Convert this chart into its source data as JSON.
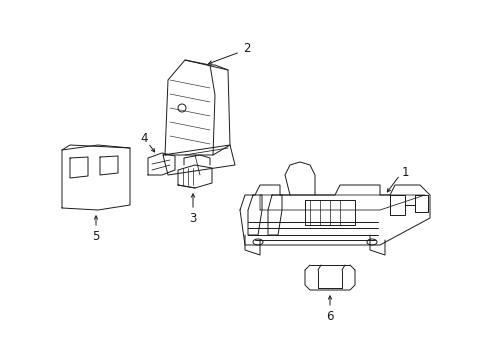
{
  "background_color": "#ffffff",
  "line_color": "#1a1a1a",
  "label_color": "#000000",
  "figsize": [
    4.89,
    3.6
  ],
  "dpi": 100,
  "lw": 0.7
}
